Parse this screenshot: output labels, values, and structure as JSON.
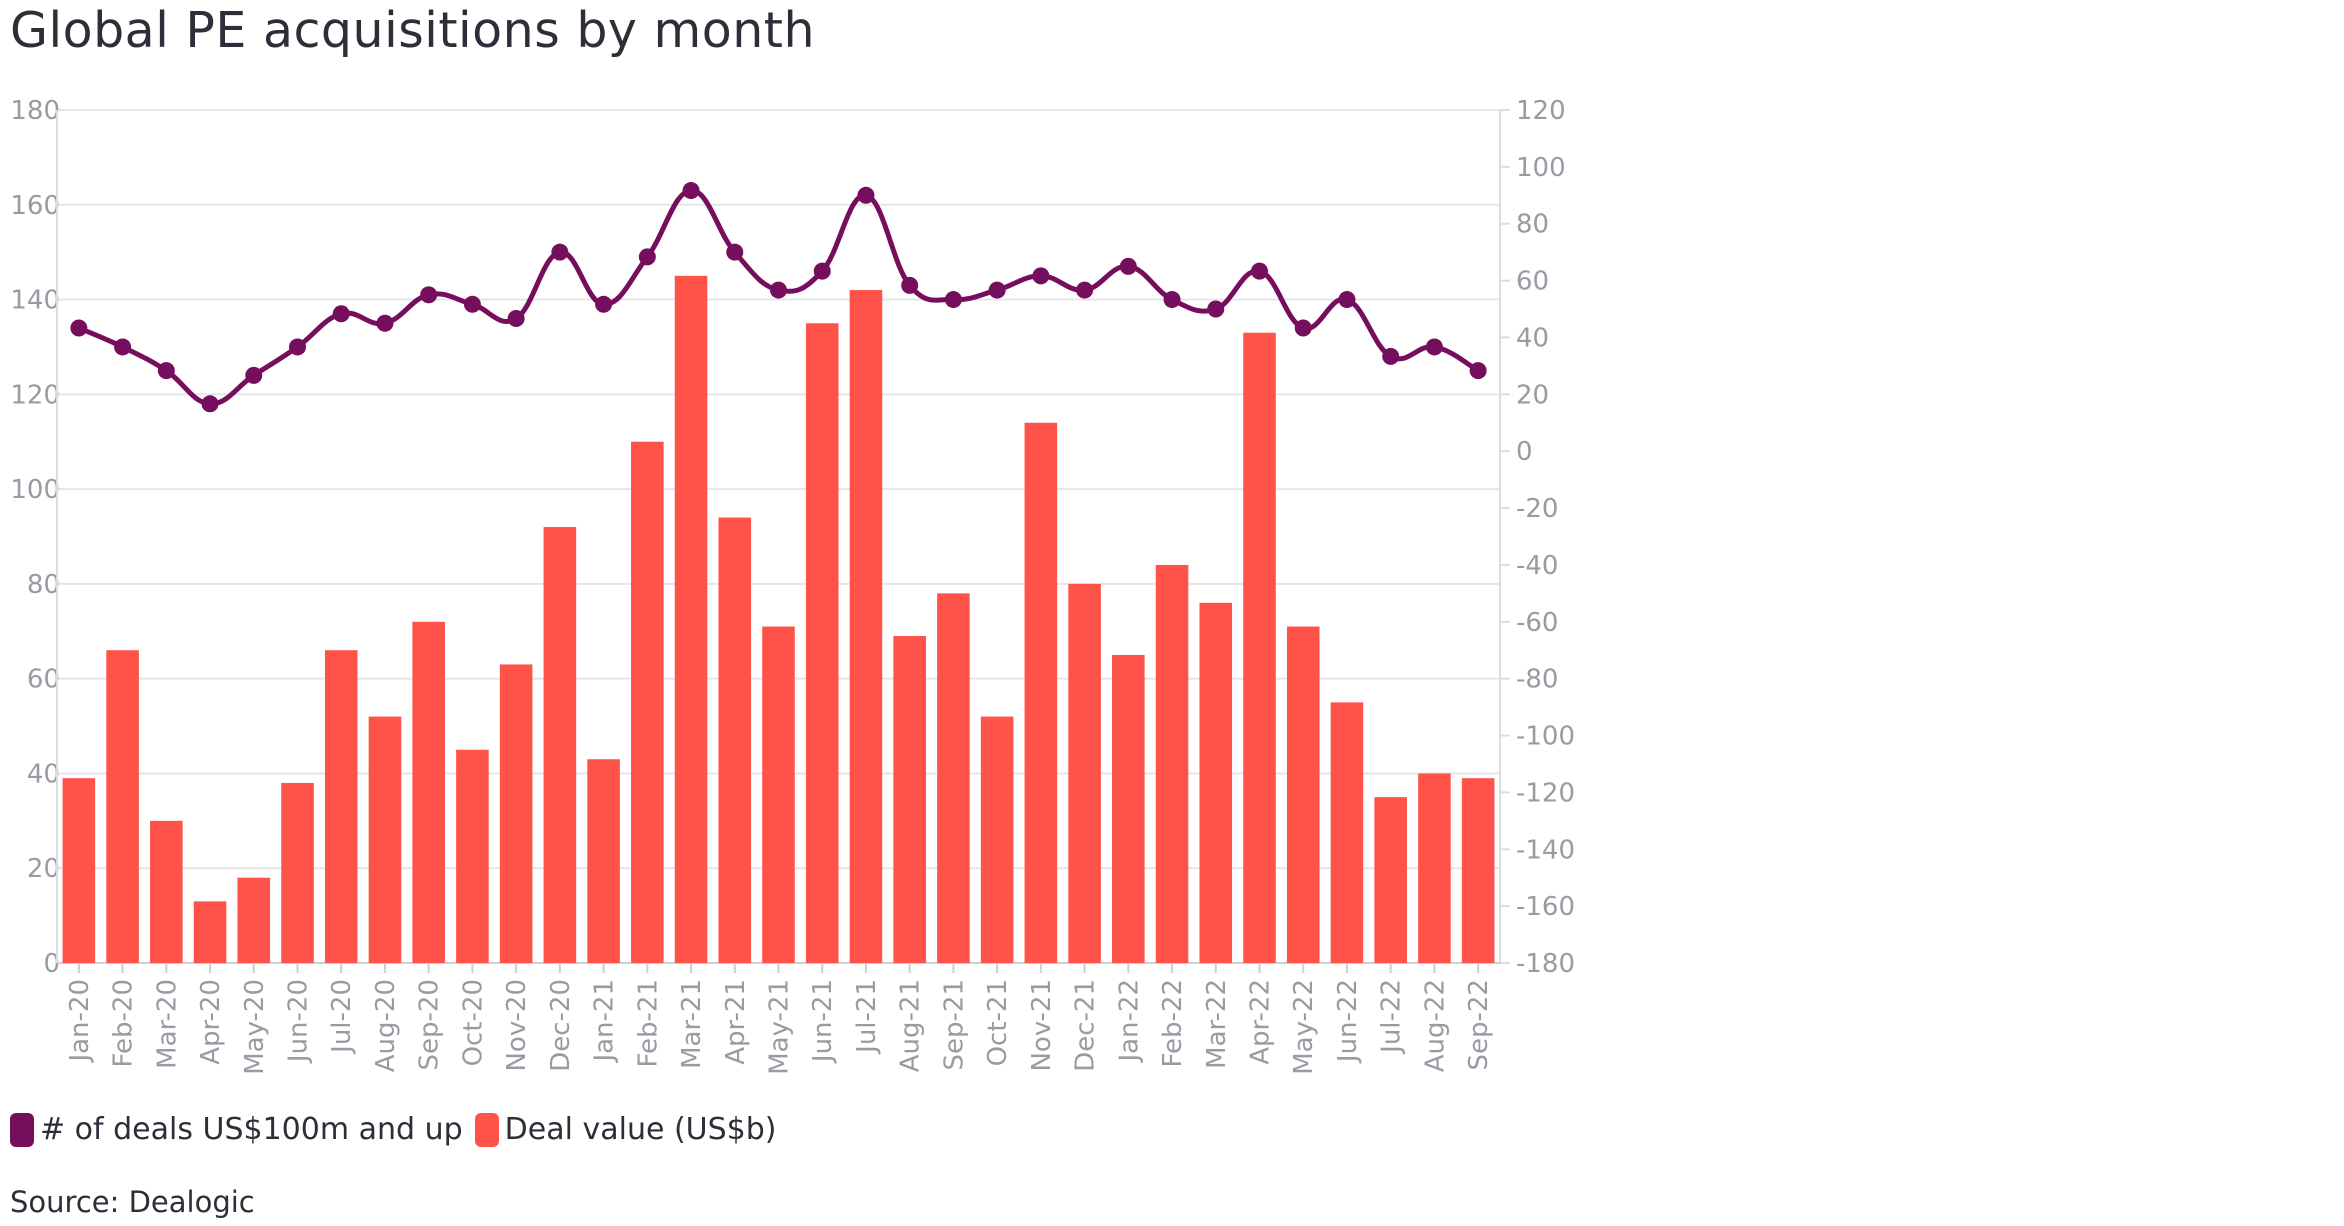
{
  "chart_data": {
    "type": "bar",
    "title": "Global PE acquisitions by month",
    "source": "Source: Dealogic",
    "categories": [
      "Jan-20",
      "Feb-20",
      "Mar-20",
      "Apr-20",
      "May-20",
      "Jun-20",
      "Jul-20",
      "Aug-20",
      "Sep-20",
      "Oct-20",
      "Nov-20",
      "Dec-20",
      "Jan-21",
      "Feb-21",
      "Mar-21",
      "Apr-21",
      "May-21",
      "Jun-21",
      "Jul-21",
      "Aug-21",
      "Sep-21",
      "Oct-21",
      "Nov-21",
      "Dec-21",
      "Jan-22",
      "Feb-22",
      "Mar-22",
      "Apr-22",
      "May-22",
      "Jun-22",
      "Jul-22",
      "Aug-22",
      "Sep-22"
    ],
    "left_axis": {
      "ylim": [
        0,
        180
      ],
      "ticks": [
        0,
        20,
        40,
        60,
        80,
        100,
        120,
        140,
        160,
        180
      ]
    },
    "right_axis": {
      "ylim": [
        -180,
        120
      ],
      "ticks": [
        -180,
        -160,
        -140,
        -120,
        -100,
        -80,
        -60,
        -40,
        -20,
        0,
        20,
        40,
        60,
        80,
        100,
        120
      ]
    },
    "grid": true,
    "legend_position": "bottom-left",
    "series": [
      {
        "name": "# of deals US$100m and up",
        "type": "line",
        "axis": "left",
        "color": "#750e5c",
        "values": [
          134,
          130,
          125,
          118,
          124,
          130,
          137,
          135,
          141,
          139,
          136,
          150,
          139,
          149,
          163,
          150,
          142,
          146,
          162,
          143,
          140,
          142,
          145,
          142,
          147,
          140,
          138,
          146,
          134,
          140,
          128,
          130,
          125
        ]
      },
      {
        "name": "Deal value (US$b)",
        "type": "bar",
        "axis": "left",
        "color": "#ff5349",
        "values": [
          39,
          66,
          30,
          13,
          18,
          38,
          66,
          52,
          72,
          45,
          63,
          92,
          43,
          110,
          145,
          94,
          71,
          135,
          142,
          69,
          78,
          52,
          114,
          80,
          65,
          84,
          76,
          133,
          71,
          55,
          35,
          40,
          39
        ]
      }
    ]
  }
}
